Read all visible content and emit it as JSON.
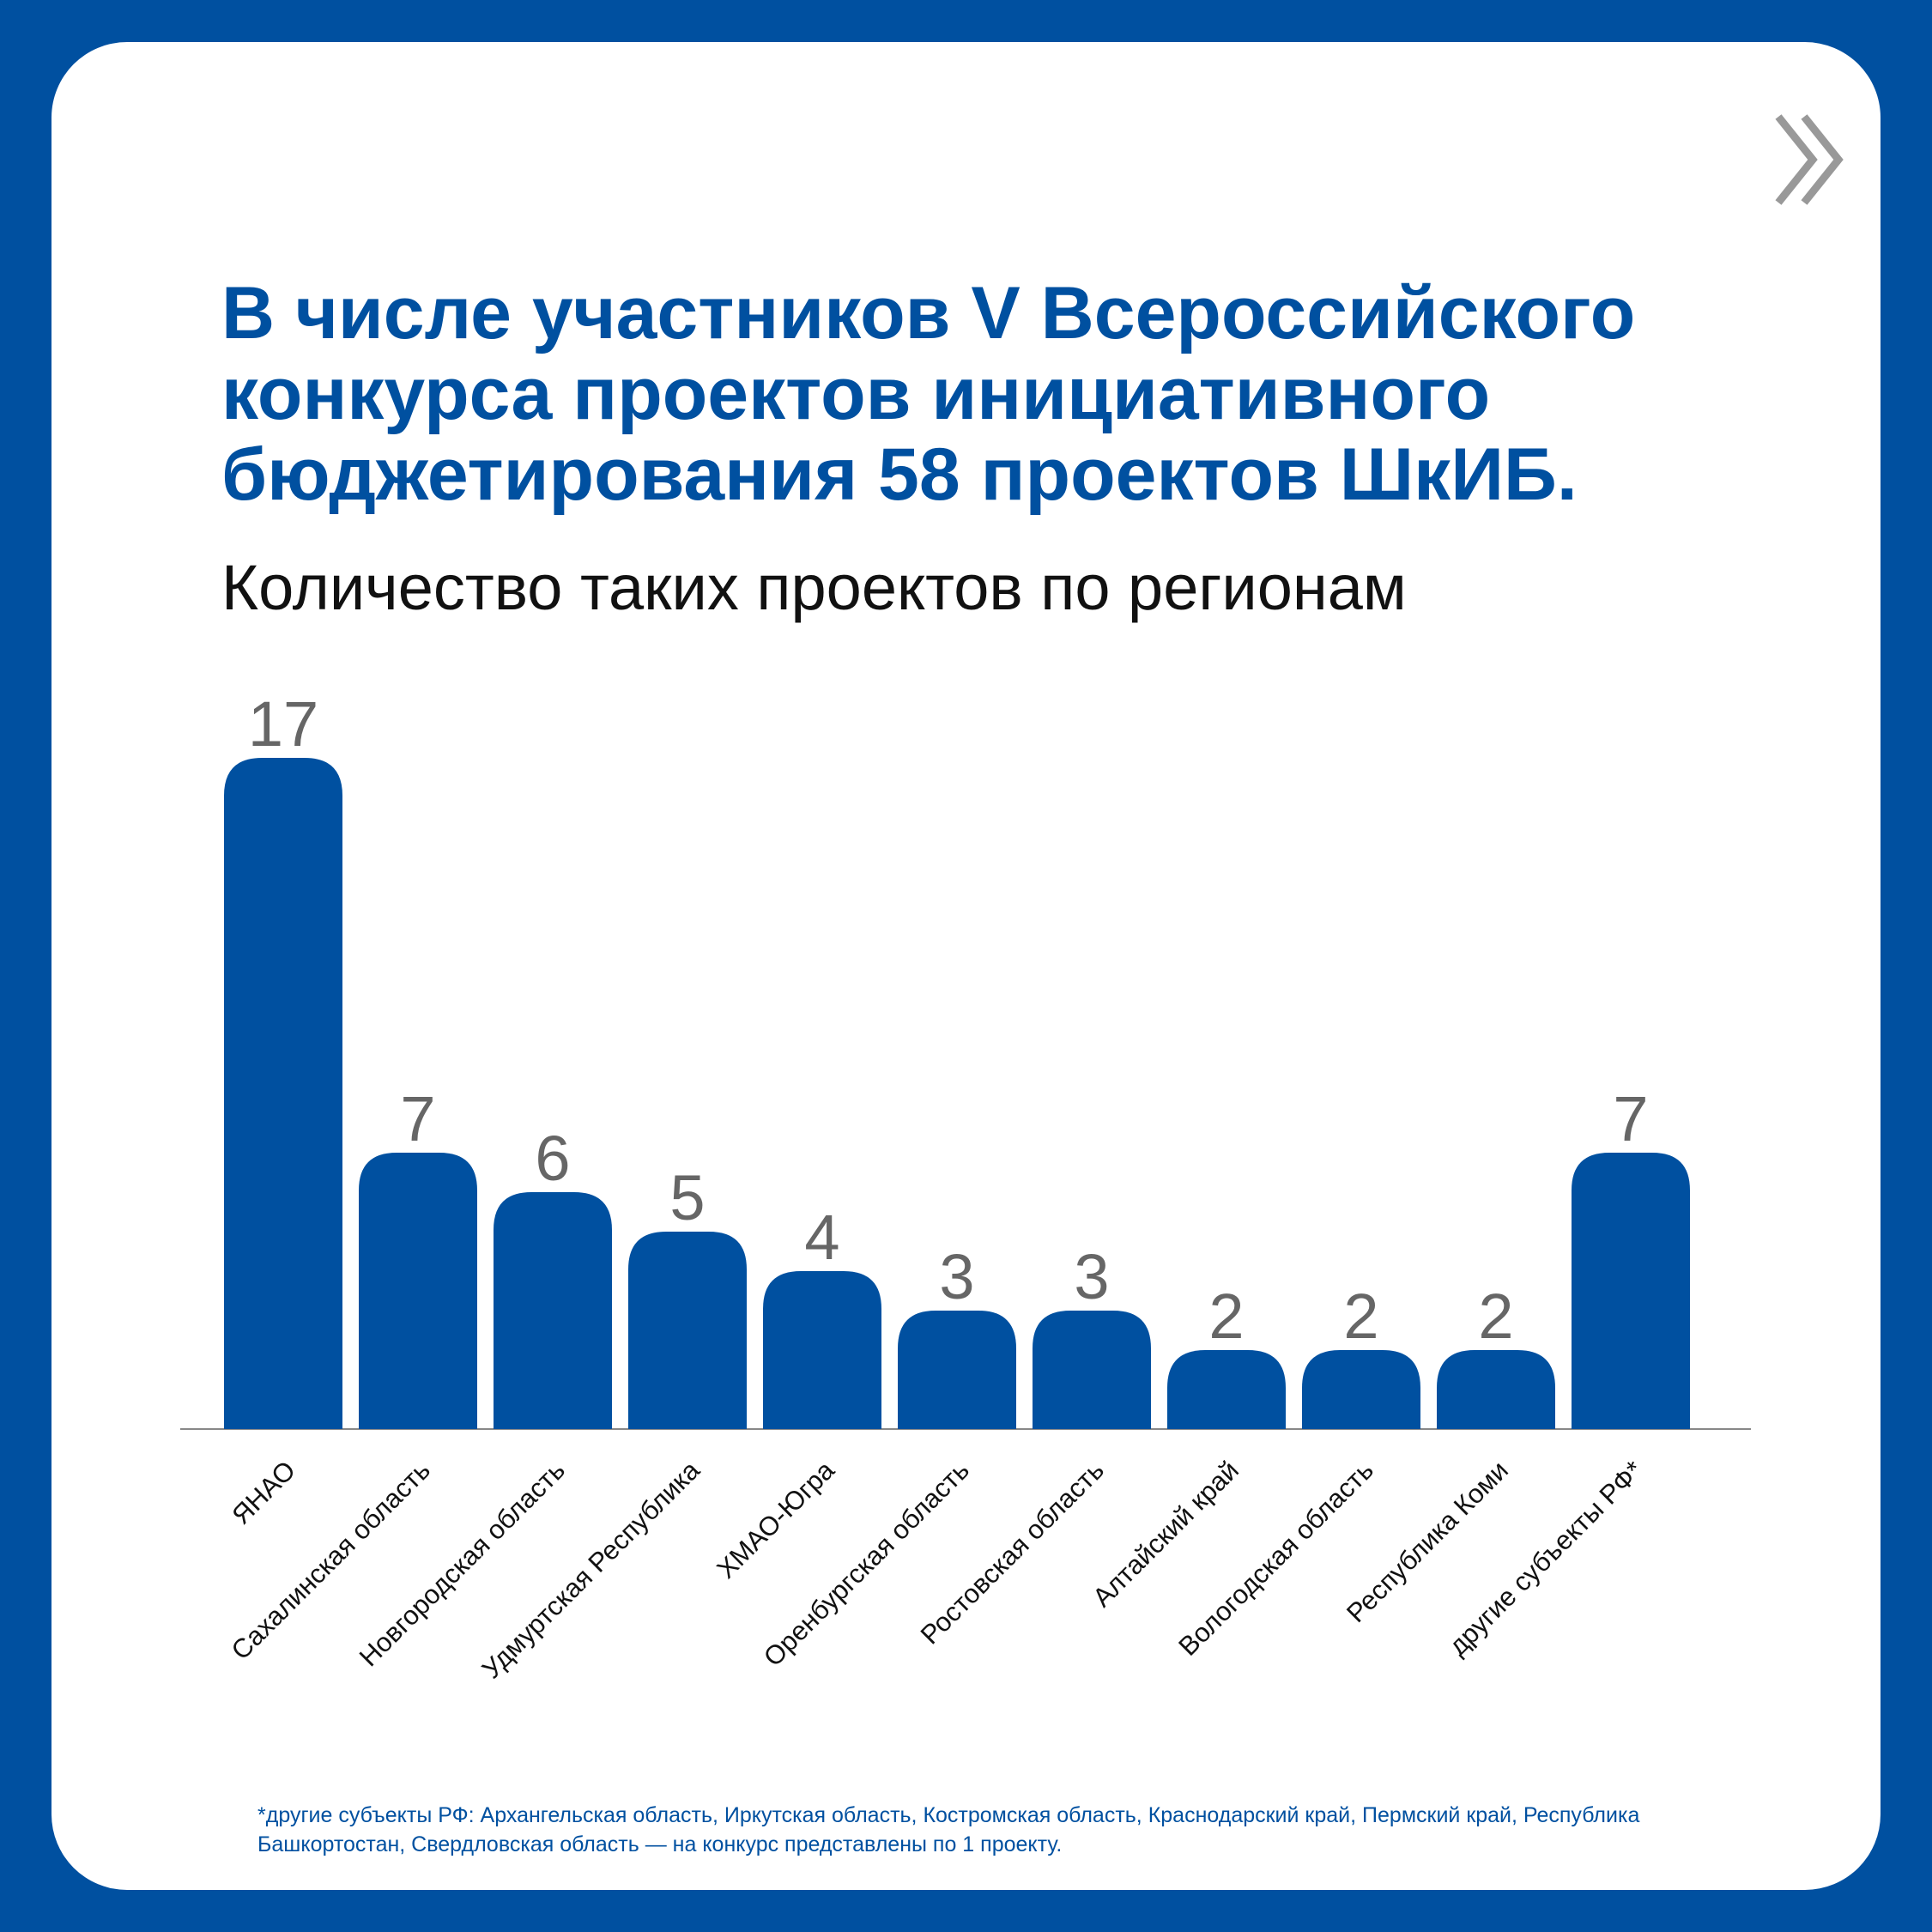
{
  "title": "В числе участников V Всероссийского конкурса проектов инициативного бюджетирования 58 проектов ШкИБ.",
  "subtitle": "Количество таких проектов по регионам",
  "icon": "double-chevron-right-icon",
  "colors": {
    "background": "#0050a0",
    "bar": "#0050a0",
    "value_label": "#666666",
    "axis": "#888888"
  },
  "chart_data": {
    "type": "bar",
    "title": "Количество таких проектов по регионам",
    "categories": [
      "ЯНАО",
      "Сахалинская область",
      "Новгородская область",
      "Удмуртская Республика",
      "ХМАО-Югра",
      "Оренбургская область",
      "Ростовская область",
      "Алтайский край",
      "Вологодская область",
      "Республика Коми",
      "другие субъекты РФ*"
    ],
    "values": [
      17,
      7,
      6,
      5,
      4,
      3,
      3,
      2,
      2,
      2,
      7
    ],
    "xlabel": "",
    "ylabel": "",
    "ylim": [
      0,
      17
    ],
    "grid": false,
    "data_labels": true
  },
  "footnote": "*другие субъекты РФ: Архангельская область, Иркутская область, Костромская область, Краснодарский край, Пермский край, Республика Башкортостан, Свердловская область — на конкурс представлены по 1 проекту."
}
